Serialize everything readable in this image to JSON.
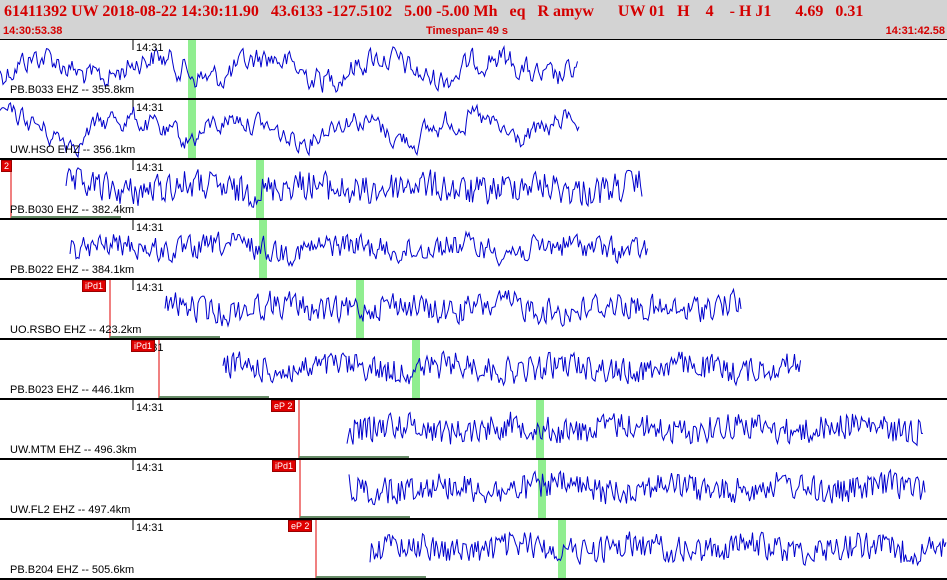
{
  "header": {
    "event_line": "61411392 UW 2018-08-22 14:30:11.90   43.6133 -127.5102   5.00 -5.00 Mh   eq   R amyw      UW 01   H    4    - H J1      4.69   0.31",
    "start_time": "14:30:53.38",
    "timespan": "Timespan=  49 s",
    "end_time": "14:31:42.58"
  },
  "colors": {
    "trace": "#0000cc",
    "pick": "#e00000",
    "theoretical": "#90ee90",
    "header_bg": "#d3d3d3",
    "header_text": "#d40000"
  },
  "traces": [
    {
      "label": "PB.B033 EHZ -- 355.8km",
      "tick": "14:31",
      "pick_label": ""
    },
    {
      "label": "UW.HSO  EHZ -- 356.1km",
      "tick": "14:31",
      "pick_label": ""
    },
    {
      "label": "PB.B030 EHZ -- 382.4km",
      "tick": "14:31",
      "pick_label": "2"
    },
    {
      "label": "PB.B022 EHZ -- 384.1km",
      "tick": "14:31",
      "pick_label": ""
    },
    {
      "label": "UO.RSBO EHZ -- 423.2km",
      "tick": "14:31",
      "pick_label": "iPd1"
    },
    {
      "label": "PB.B023 EHZ -- 446.1km",
      "tick": "14:31",
      "pick_label": "iPd1"
    },
    {
      "label": "UW.MTM  EHZ -- 496.3km",
      "tick": "14:31",
      "pick_label": "eP 2"
    },
    {
      "label": "UW.FL2  EHZ -- 497.4km",
      "tick": "14:31",
      "pick_label": "iPd1"
    },
    {
      "label": "PB.B204 EHZ -- 505.6km",
      "tick": "14:31",
      "pick_label": "eP 2"
    }
  ]
}
